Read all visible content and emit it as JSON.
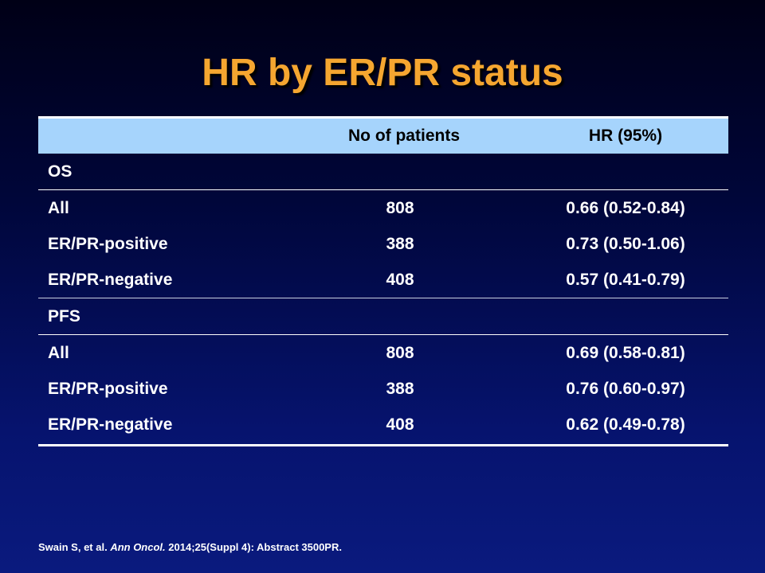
{
  "slide": {
    "title": "HR by ER/PR status",
    "footnote": {
      "authors": "Swain S, et al. ",
      "journal": "Ann Oncol.",
      "rest": " 2014;25(Suppl 4): Abstract 3500PR."
    }
  },
  "table": {
    "headers": [
      "",
      "No of patients",
      "HR (95%)"
    ],
    "rows": [
      {
        "label": "OS",
        "n": "",
        "hr": ""
      },
      {
        "label": "All",
        "n": "808",
        "hr": "0.66 (0.52-0.84)"
      },
      {
        "label": "ER/PR-positive",
        "n": "388",
        "hr": "0.73 (0.50-1.06)"
      },
      {
        "label": "ER/PR-negative",
        "n": "408",
        "hr": "0.57 (0.41-0.79)"
      },
      {
        "label": "PFS",
        "n": "",
        "hr": ""
      },
      {
        "label": "All",
        "n": "808",
        "hr": "0.69 (0.58-0.81)"
      },
      {
        "label": "ER/PR-positive",
        "n": "388",
        "hr": "0.76 (0.60-0.97)"
      },
      {
        "label": "ER/PR-negative",
        "n": "408",
        "hr": "0.62 (0.49-0.78)"
      }
    ]
  }
}
